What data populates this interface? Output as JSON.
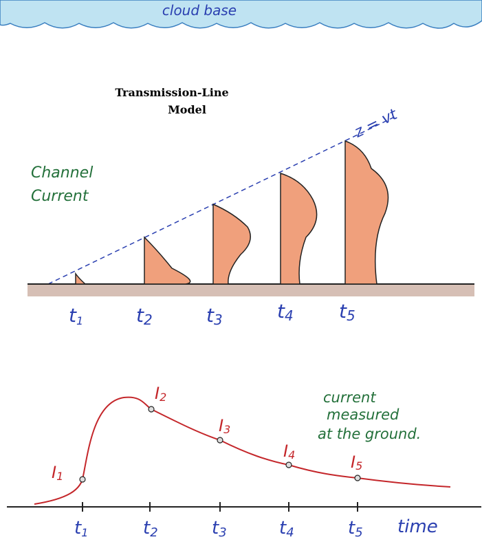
{
  "cloud": {
    "label": "cloud base"
  },
  "top_panel": {
    "title_lines": [
      "Transmission-Line",
      "Model"
    ],
    "line_label": "z = vt",
    "side_label_lines": [
      "Channel",
      "Current"
    ],
    "time_labels": [
      {
        "base": "t",
        "sub": "1"
      },
      {
        "base": "t",
        "sub": "2"
      },
      {
        "base": "t",
        "sub": "3"
      },
      {
        "base": "t",
        "sub": "4"
      },
      {
        "base": "t",
        "sub": "5"
      }
    ]
  },
  "bottom_panel": {
    "point_labels": [
      {
        "base": "I",
        "sub": "1"
      },
      {
        "base": "I",
        "sub": "2"
      },
      {
        "base": "I",
        "sub": "3"
      },
      {
        "base": "I",
        "sub": "4"
      },
      {
        "base": "I",
        "sub": "5"
      }
    ],
    "time_labels": [
      {
        "base": "t",
        "sub": "1"
      },
      {
        "base": "t",
        "sub": "2"
      },
      {
        "base": "t",
        "sub": "3"
      },
      {
        "base": "t",
        "sub": "4"
      },
      {
        "base": "t",
        "sub": "5"
      }
    ],
    "axis_label": "time",
    "note_lines": [
      "current",
      "measured",
      "at the ground."
    ]
  }
}
